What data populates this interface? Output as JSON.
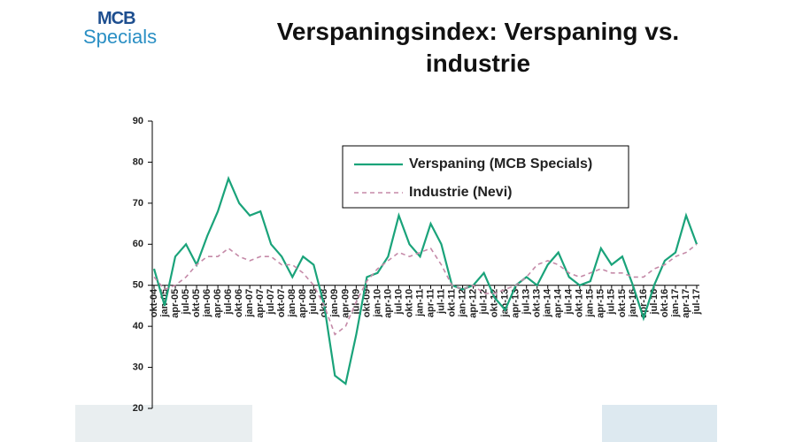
{
  "logo": {
    "top": "MCB",
    "bottom": "Specials"
  },
  "chart_data": {
    "type": "line",
    "title": "Verspaningsindex: Verspaning vs. industrie",
    "categories": [
      "okt-04",
      "jan-05",
      "apr-05",
      "jul-05",
      "okt-05",
      "jan-06",
      "apr-06",
      "jul-06",
      "okt-06",
      "jan-07",
      "apr-07",
      "jul-07",
      "okt-07",
      "jan-08",
      "apr-08",
      "jul-08",
      "okt-08",
      "jan-09",
      "apr-09",
      "jul-09",
      "okt-09",
      "jan-10",
      "apr-10",
      "jul-10",
      "okt-10",
      "jan-11",
      "apr-11",
      "jul-11",
      "okt-11",
      "jan-12",
      "apr-12",
      "jul-12",
      "okt-12",
      "jan-13",
      "apr-13",
      "jul-13",
      "okt-13",
      "jan-14",
      "apr-14",
      "jul-14",
      "okt-14",
      "jan-15",
      "apr-15",
      "jul-15",
      "okt-15",
      "jan-16",
      "apr-16",
      "jul-16",
      "okt-16",
      "jan-17",
      "apr-17",
      "jul-17"
    ],
    "series": [
      {
        "name": "Verspaning (MCB Specials)",
        "color": "#1aa37a",
        "dash": false,
        "values": [
          54,
          45,
          57,
          60,
          55,
          62,
          68,
          76,
          70,
          67,
          68,
          60,
          57,
          52,
          57,
          55,
          45,
          28,
          26,
          38,
          52,
          53,
          57,
          67,
          60,
          57,
          65,
          60,
          50,
          49,
          50,
          53,
          47,
          44,
          50,
          52,
          50,
          55,
          58,
          52,
          50,
          51,
          59,
          55,
          57,
          50,
          42,
          50,
          56,
          58,
          67,
          60
        ]
      },
      {
        "name": "Industrie (Nevi)",
        "color": "#c58aa8",
        "dash": true,
        "values": [
          52,
          49,
          50,
          52,
          55,
          57,
          57,
          59,
          57,
          56,
          57,
          57,
          55,
          55,
          53,
          50,
          45,
          38,
          40,
          46,
          51,
          54,
          56,
          58,
          57,
          58,
          59,
          55,
          50,
          49,
          50,
          48,
          48,
          49,
          50,
          52,
          55,
          56,
          55,
          53,
          52,
          53,
          54,
          53,
          53,
          52,
          52,
          54,
          55,
          57,
          58,
          60
        ]
      }
    ],
    "ylim": [
      20,
      90
    ],
    "yticks": [
      20,
      30,
      40,
      50,
      60,
      70,
      80,
      90
    ],
    "x_axis_at": 50
  }
}
